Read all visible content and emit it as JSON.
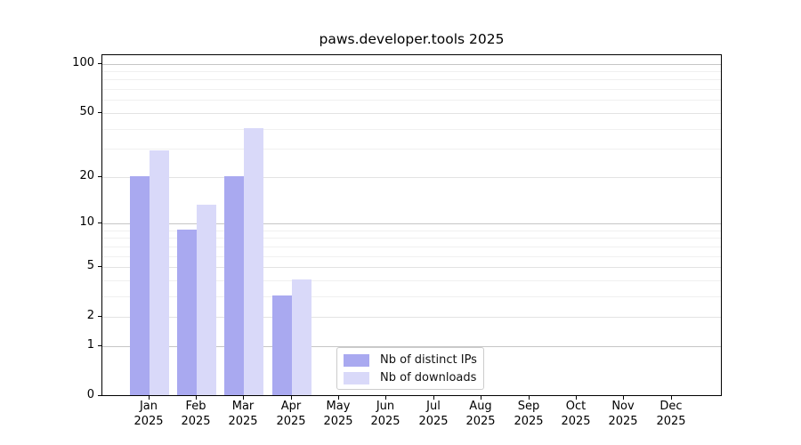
{
  "chart_data": {
    "type": "bar",
    "title": "paws.developer.tools 2025",
    "x_axis": {
      "categories": [
        {
          "month": "Jan",
          "year": "2025"
        },
        {
          "month": "Feb",
          "year": "2025"
        },
        {
          "month": "Mar",
          "year": "2025"
        },
        {
          "month": "Apr",
          "year": "2025"
        },
        {
          "month": "May",
          "year": "2025"
        },
        {
          "month": "Jun",
          "year": "2025"
        },
        {
          "month": "Jul",
          "year": "2025"
        },
        {
          "month": "Aug",
          "year": "2025"
        },
        {
          "month": "Sep",
          "year": "2025"
        },
        {
          "month": "Oct",
          "year": "2025"
        },
        {
          "month": "Nov",
          "year": "2025"
        },
        {
          "month": "Dec",
          "year": "2025"
        }
      ]
    },
    "y_axis": {
      "scale": "log1p",
      "tick_labels": [
        "0",
        "1",
        "2",
        "5",
        "10",
        "20",
        "50",
        "100"
      ],
      "ticks": [
        0,
        1,
        2,
        5,
        10,
        20,
        50,
        100
      ],
      "decade_gridlines": [
        1,
        10,
        100
      ],
      "minor_gridlines": [
        3,
        4,
        6,
        7,
        8,
        9,
        30,
        40,
        60,
        70,
        80,
        90
      ],
      "range": [
        0,
        112.6
      ]
    },
    "series": [
      {
        "name": "Nb of distinct IPs",
        "color": "#a9a9f0",
        "values": [
          20,
          9,
          20,
          3,
          0,
          0,
          0,
          0,
          0,
          0,
          0,
          0
        ]
      },
      {
        "name": "Nb of downloads",
        "color": "#d9d9f9",
        "values": [
          29,
          13,
          40,
          4,
          0,
          0,
          0,
          0,
          0,
          0,
          0,
          0
        ]
      }
    ],
    "legend": {
      "position": "lower center"
    },
    "grid": true
  }
}
